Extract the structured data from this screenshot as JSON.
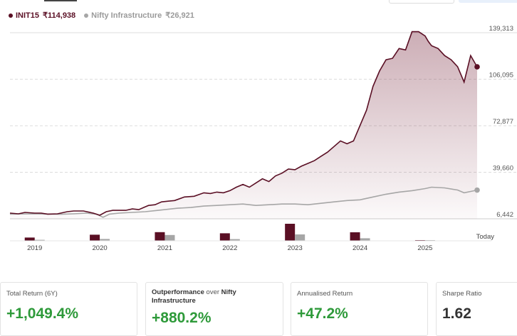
{
  "legend": {
    "fund_name": "INIT15",
    "fund_value": "₹114,938",
    "index_name": "Nifty Infrastructure",
    "index_value": "₹26,921"
  },
  "colors": {
    "fund": "#5a0f24",
    "index": "#a6a6a6",
    "positive": "#2e9a3a"
  },
  "chart_data": {
    "type": "line",
    "y_ticks": [
      "139,313",
      "106,095",
      "72,877",
      "39,660",
      "6,442"
    ],
    "ylim": [
      6442,
      139313
    ],
    "x_ticks": [
      "2019",
      "2020",
      "2021",
      "2022",
      "2023",
      "2024",
      "2025"
    ],
    "x_end_label": "Today",
    "xlim": [
      2018.62,
      2025.8
    ],
    "series": [
      {
        "name": "INIT15",
        "color": "#5a0f24",
        "x": [
          2018.62,
          2018.75,
          2018.85,
          2019.0,
          2019.1,
          2019.2,
          2019.35,
          2019.5,
          2019.6,
          2019.75,
          2019.9,
          2020.0,
          2020.1,
          2020.2,
          2020.3,
          2020.4,
          2020.5,
          2020.6,
          2020.7,
          2020.75,
          2020.85,
          2020.95,
          2021.05,
          2021.15,
          2021.3,
          2021.45,
          2021.6,
          2021.7,
          2021.8,
          2021.9,
          2022.0,
          2022.1,
          2022.2,
          2022.3,
          2022.4,
          2022.5,
          2022.6,
          2022.7,
          2022.8,
          2022.9,
          2023.0,
          2023.1,
          2023.2,
          2023.3,
          2023.4,
          2023.5,
          2023.6,
          2023.7,
          2023.8,
          2023.9,
          2024.0,
          2024.1,
          2024.2,
          2024.3,
          2024.4,
          2024.5,
          2024.6,
          2024.7,
          2024.8,
          2024.9,
          2025.0,
          2025.05,
          2025.1,
          2025.2,
          2025.3,
          2025.4,
          2025.5,
          2025.6,
          2025.7,
          2025.8
        ],
        "values": [
          10500,
          10000,
          11000,
          10500,
          10500,
          9800,
          10000,
          11500,
          12000,
          12000,
          10500,
          9000,
          11500,
          12500,
          12500,
          12500,
          13500,
          13000,
          15000,
          16000,
          16500,
          18500,
          19000,
          19500,
          22000,
          22500,
          25000,
          24500,
          25500,
          25000,
          26500,
          29000,
          31000,
          29000,
          32000,
          35000,
          33000,
          37000,
          39000,
          42000,
          41500,
          44000,
          46000,
          48000,
          51000,
          54000,
          58000,
          62000,
          60000,
          62000,
          73000,
          84000,
          101000,
          112000,
          120000,
          121000,
          128000,
          127000,
          140000,
          140000,
          137000,
          133000,
          130000,
          128000,
          123000,
          120000,
          115000,
          104000,
          123000,
          114938
        ]
      },
      {
        "name": "Nifty Infrastructure",
        "color": "#a6a6a6",
        "x": [
          2018.62,
          2018.8,
          2019.0,
          2019.2,
          2019.4,
          2019.6,
          2019.8,
          2019.95,
          2020.05,
          2020.15,
          2020.3,
          2020.5,
          2020.7,
          2020.9,
          2021.0,
          2021.2,
          2021.4,
          2021.6,
          2021.8,
          2022.0,
          2022.2,
          2022.4,
          2022.6,
          2022.8,
          2023.0,
          2023.2,
          2023.4,
          2023.6,
          2023.8,
          2024.0,
          2024.2,
          2024.4,
          2024.6,
          2024.8,
          2025.0,
          2025.1,
          2025.3,
          2025.5,
          2025.6,
          2025.8
        ],
        "values": [
          9800,
          9900,
          10000,
          9800,
          9700,
          10000,
          10500,
          9800,
          7500,
          9800,
          10500,
          11000,
          11500,
          12500,
          13000,
          14000,
          14500,
          15500,
          16000,
          16500,
          17000,
          16000,
          16500,
          17000,
          17000,
          16500,
          17500,
          18500,
          19500,
          20000,
          22000,
          24000,
          25500,
          26500,
          28000,
          29000,
          28500,
          27000,
          25000,
          26921
        ]
      }
    ],
    "markers": [
      {
        "year": "2019",
        "fund": 2.3,
        "index": 0.7
      },
      {
        "year": "2020",
        "fund": 4.3,
        "index": 1.3
      },
      {
        "year": "2021",
        "fund": 6.1,
        "index": 4.1
      },
      {
        "year": "2022",
        "fund": 5.3,
        "index": 1.2
      },
      {
        "year": "2023",
        "fund": 12.0,
        "index": 4.5
      },
      {
        "year": "2024",
        "fund": 6.0,
        "index": 1.8
      },
      {
        "year": "2025",
        "fund": 0.5,
        "index": 0.5
      }
    ]
  },
  "cards": [
    {
      "label": "Total Return (6Y)",
      "value": "+1,049.4%"
    },
    {
      "label_prefix": "Outperformance",
      "label_mid": " over ",
      "label_index": "Nifty Infrastructure",
      "value": "+880.2%"
    },
    {
      "label": "Annualised Return",
      "value": "+47.2%"
    },
    {
      "label": "Sharpe Ratio",
      "value": "1.62"
    }
  ]
}
